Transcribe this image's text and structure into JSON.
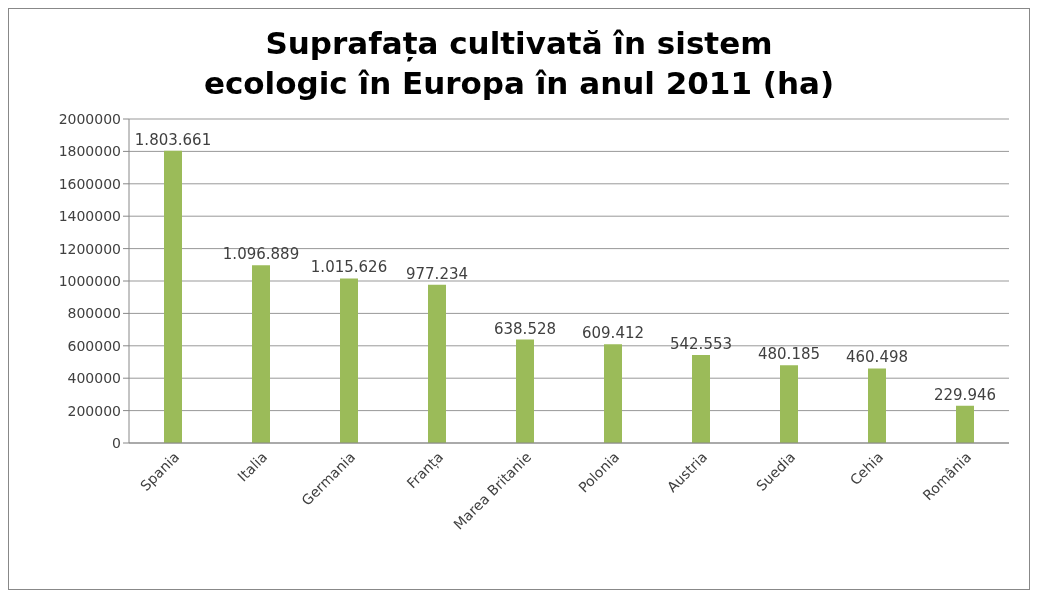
{
  "chart_data": {
    "type": "bar",
    "title": "Suprafața cultivată în sistem ecologic în Europa în anul 2011 (ha)",
    "categories": [
      "Spania",
      "Italia",
      "Germania",
      "Franța",
      "Marea Britanie",
      "Polonia",
      "Austria",
      "Suedia",
      "Cehia",
      "România"
    ],
    "values": [
      1803661,
      1096889,
      1015626,
      977234,
      638528,
      609412,
      542553,
      480185,
      460498,
      229946
    ],
    "value_labels": [
      "1.803.661",
      "1.096.889",
      "1.015.626",
      "977.234",
      "638.528",
      "609.412",
      "542.553",
      "480.185",
      "460.498",
      "229.946"
    ],
    "color": "#9bbb59",
    "ylim": [
      0,
      2000000
    ],
    "yticks": [
      0,
      200000,
      400000,
      600000,
      800000,
      1000000,
      1200000,
      1400000,
      1600000,
      1800000,
      2000000
    ],
    "grid": "y"
  }
}
